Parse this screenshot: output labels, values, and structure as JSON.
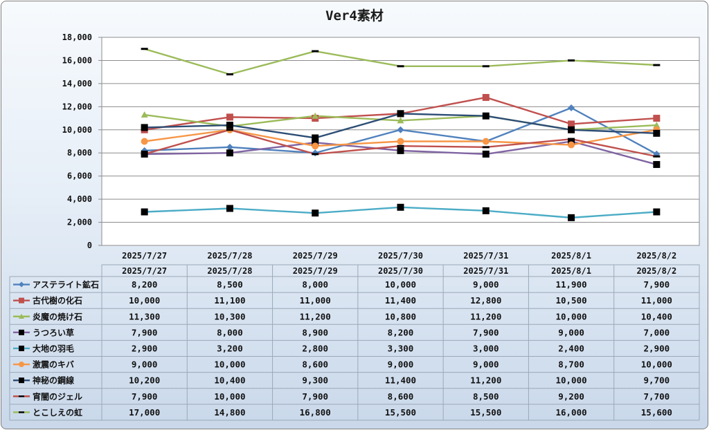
{
  "chart_data": {
    "type": "line",
    "title": "Ver4素材",
    "xlabel": "",
    "ylabel": "",
    "ylim": [
      0,
      18000
    ],
    "yticks": [
      "0",
      "2,000",
      "4,000",
      "6,000",
      "8,000",
      "10,000",
      "12,000",
      "14,000",
      "16,000",
      "18,000"
    ],
    "grid": true,
    "legend": "data-table",
    "categories": [
      "2025/7/27",
      "2025/7/28",
      "2025/7/29",
      "2025/7/30",
      "2025/7/31",
      "2025/8/1",
      "2025/8/2"
    ],
    "series": [
      {
        "name": "アステライト鉱石",
        "color": "#4f81bd",
        "marker": "diamond",
        "values": [
          8200,
          8500,
          8000,
          10000,
          9000,
          11900,
          7900
        ],
        "labels": [
          "8,200",
          "8,500",
          "8,000",
          "10,000",
          "9,000",
          "11,900",
          "7,900"
        ]
      },
      {
        "name": "古代樹の化石",
        "color": "#c0504d",
        "marker": "square",
        "values": [
          10000,
          11100,
          11000,
          11400,
          12800,
          10500,
          11000
        ],
        "labels": [
          "10,000",
          "11,100",
          "11,000",
          "11,400",
          "12,800",
          "10,500",
          "11,000"
        ]
      },
      {
        "name": "炎魔の焼け石",
        "color": "#9bbb59",
        "marker": "triangle",
        "values": [
          11300,
          10300,
          11200,
          10800,
          11200,
          10000,
          10400
        ],
        "labels": [
          "11,300",
          "10,300",
          "11,200",
          "10,800",
          "11,200",
          "10,000",
          "10,400"
        ]
      },
      {
        "name": "うつろい草",
        "color": "#8064a2",
        "marker": "blacksquare",
        "values": [
          7900,
          8000,
          8900,
          8200,
          7900,
          9000,
          7000
        ],
        "labels": [
          "7,900",
          "8,000",
          "8,900",
          "8,200",
          "7,900",
          "9,000",
          "7,000"
        ]
      },
      {
        "name": "大地の羽毛",
        "color": "#4bacc6",
        "marker": "blacksquare",
        "values": [
          2900,
          3200,
          2800,
          3300,
          3000,
          2400,
          2900
        ],
        "labels": [
          "2,900",
          "3,200",
          "2,800",
          "3,300",
          "3,000",
          "2,400",
          "2,900"
        ]
      },
      {
        "name": "激震のキバ",
        "color": "#f79646",
        "marker": "circle",
        "values": [
          9000,
          10000,
          8600,
          9000,
          9000,
          8700,
          10000
        ],
        "labels": [
          "9,000",
          "10,000",
          "8,600",
          "9,000",
          "9,000",
          "8,700",
          "10,000"
        ]
      },
      {
        "name": "神秘の鋼線",
        "color": "#2c4d75",
        "marker": "blacksquare",
        "values": [
          10200,
          10400,
          9300,
          11400,
          11200,
          10000,
          9700
        ],
        "labels": [
          "10,200",
          "10,400",
          "9,300",
          "11,400",
          "11,200",
          "10,000",
          "9,700"
        ]
      },
      {
        "name": "宵闇のジェル",
        "color": "#c0504d",
        "marker": "dash",
        "values": [
          7900,
          10000,
          7900,
          8600,
          8500,
          9200,
          7700
        ],
        "labels": [
          "7,900",
          "10,000",
          "7,900",
          "8,600",
          "8,500",
          "9,200",
          "7,700"
        ]
      },
      {
        "name": "とこしえの虹",
        "color": "#9bbb59",
        "marker": "dash",
        "values": [
          17000,
          14800,
          16800,
          15500,
          15500,
          16000,
          15600
        ],
        "labels": [
          "17,000",
          "14,800",
          "16,800",
          "15,500",
          "15,500",
          "16,000",
          "15,600"
        ]
      }
    ]
  }
}
